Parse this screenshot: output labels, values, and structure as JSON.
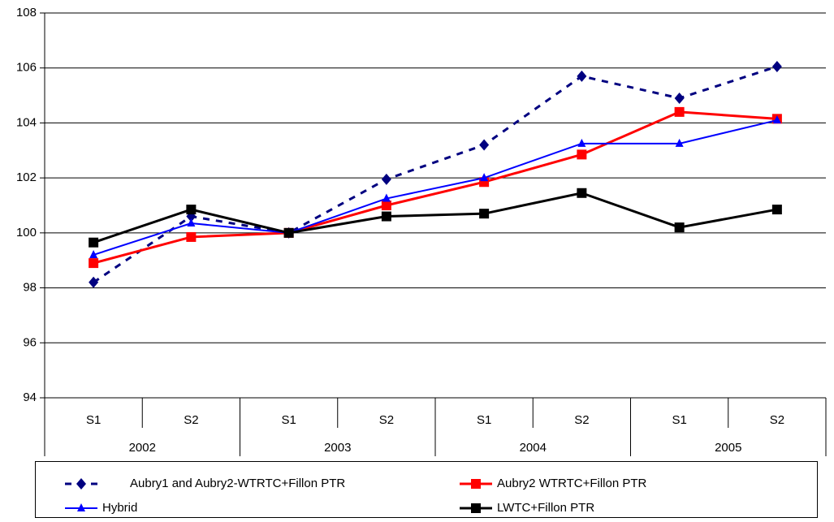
{
  "chart_data": {
    "type": "line",
    "categories": [
      "S1",
      "S2",
      "S1",
      "S2",
      "S1",
      "S2",
      "S1",
      "S2"
    ],
    "category_groups": [
      "2002",
      "2003",
      "2004",
      "2005"
    ],
    "series": [
      {
        "name": "Aubry1 and Aubry2-WTRTC+Fillon PTR",
        "color": "#000080",
        "marker": "diamond",
        "dashed": true,
        "values": [
          98.2,
          100.6,
          100.0,
          101.95,
          103.2,
          105.7,
          104.9,
          106.05
        ]
      },
      {
        "name": "Aubry2 WTRTC+Fillon PTR",
        "color": "#ff0000",
        "marker": "square",
        "dashed": false,
        "values": [
          98.9,
          99.85,
          100.0,
          101.0,
          101.85,
          102.85,
          104.4,
          104.15
        ]
      },
      {
        "name": "Hybrid",
        "color": "#0000ff",
        "marker": "triangle",
        "dashed": false,
        "values": [
          99.2,
          100.35,
          100.0,
          101.25,
          102.0,
          103.25,
          103.25,
          104.1
        ]
      },
      {
        "name": "LWTC+Fillon PTR",
        "color": "#000000",
        "marker": "square",
        "dashed": false,
        "values": [
          99.65,
          100.85,
          100.0,
          100.6,
          100.7,
          101.45,
          100.2,
          100.85
        ]
      }
    ],
    "ylim": [
      94,
      108
    ],
    "yticks": [
      94,
      96,
      98,
      100,
      102,
      104,
      106,
      108
    ],
    "grid": true,
    "legend": "bottom"
  }
}
